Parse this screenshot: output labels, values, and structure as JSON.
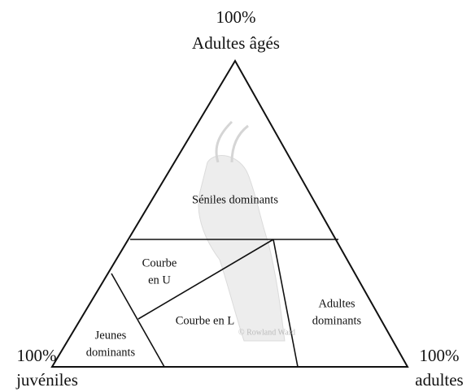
{
  "corners": [
    {
      "percent": "100%",
      "label": "Adultes âgés"
    },
    {
      "percent": "100%",
      "label": "juvéniles"
    },
    {
      "percent": "100%",
      "label": "adultes"
    }
  ],
  "regions": [
    {
      "lines": [
        "Séniles dominants"
      ]
    },
    {
      "lines": [
        "Courbe",
        "en U"
      ]
    },
    {
      "lines": [
        "Courbe en L"
      ]
    },
    {
      "lines": [
        "Jeunes",
        "dominants"
      ]
    },
    {
      "lines": [
        "Adultes",
        "dominants"
      ]
    }
  ],
  "watermark": "© Rowland Ward"
}
